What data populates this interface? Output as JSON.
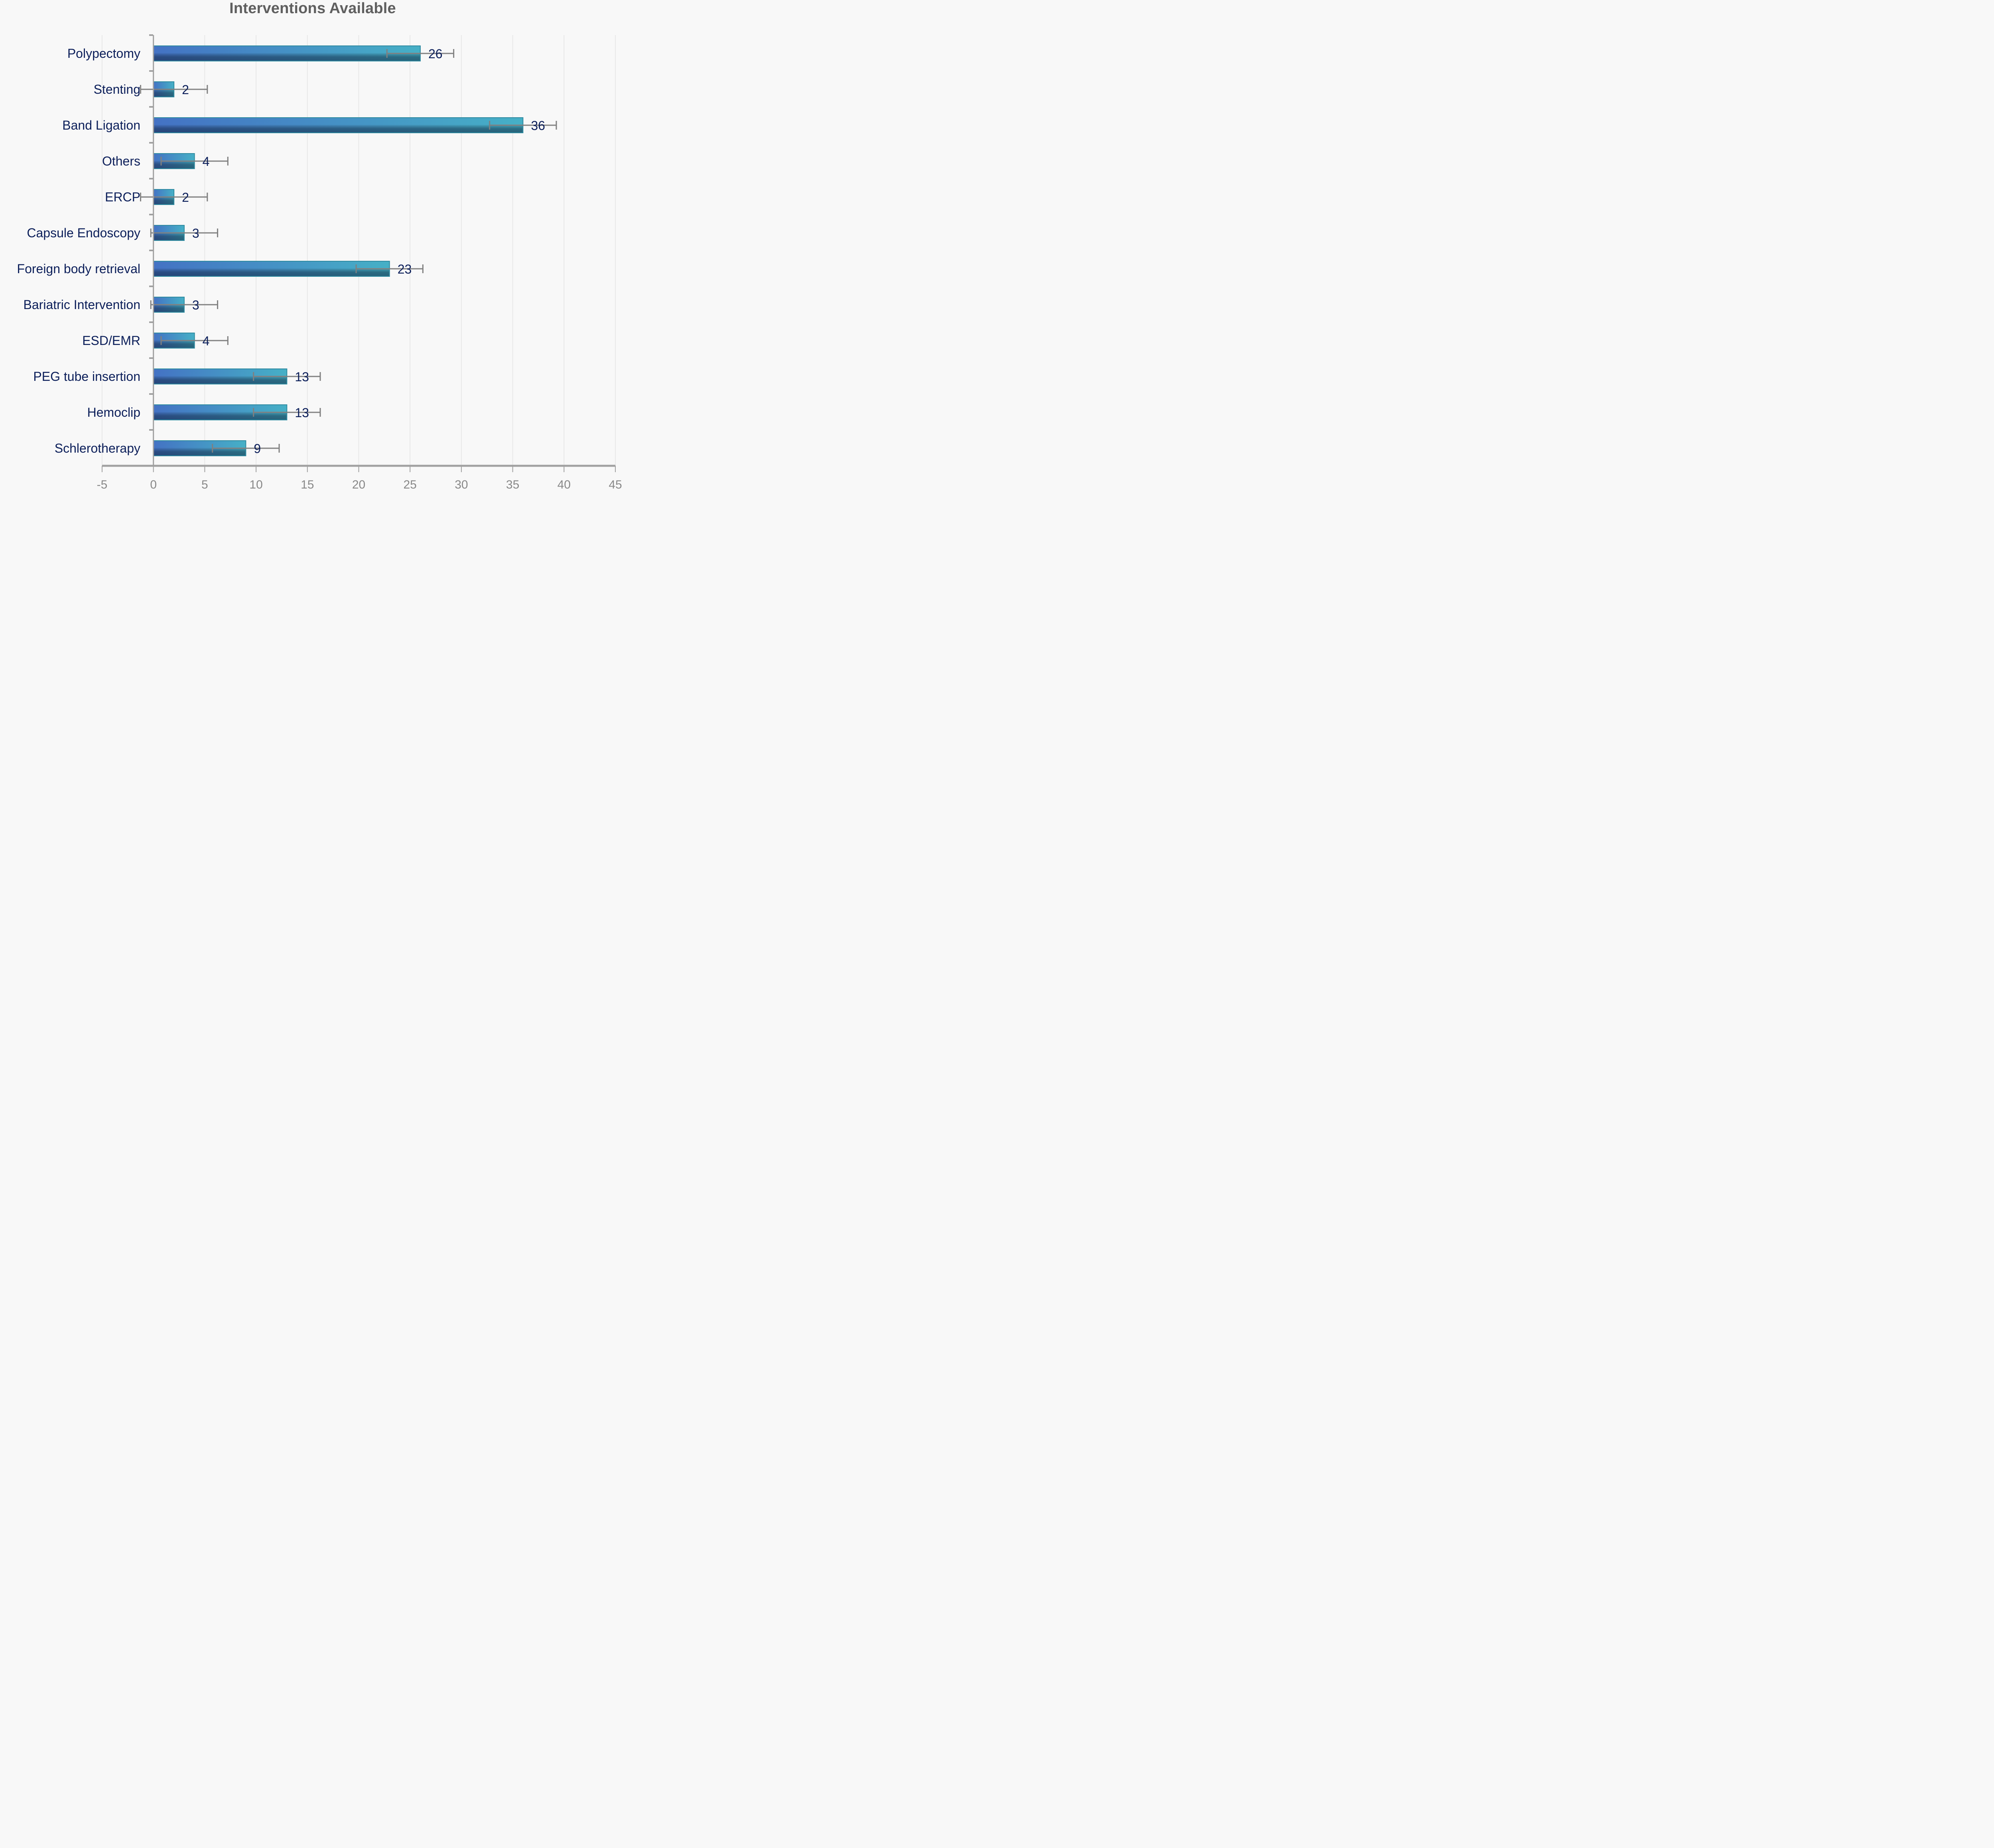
{
  "chart_data": {
    "type": "bar",
    "orientation": "horizontal",
    "title": "Interventions Available",
    "xlabel": "",
    "ylabel": "",
    "xlim": [
      -5,
      45
    ],
    "x_ticks": [
      -5,
      0,
      5,
      10,
      15,
      20,
      25,
      30,
      35,
      40,
      45
    ],
    "grid": "vertical",
    "legend": "none",
    "error_bars": "symmetric, approx ±3.25",
    "categories": [
      "Polypectomy",
      "Stenting",
      "Band Ligation",
      "Others",
      "ERCP",
      "Capsule Endoscopy",
      "Foreign body retrieval",
      "Bariatric Intervention",
      "ESD/EMR",
      "PEG tube insertion",
      "Hemoclip",
      "Schlerotherapy"
    ],
    "values": [
      26,
      2,
      36,
      4,
      2,
      3,
      23,
      3,
      4,
      13,
      13,
      9
    ],
    "error": [
      3.25,
      3.25,
      3.25,
      3.25,
      3.25,
      3.25,
      3.25,
      3.25,
      3.25,
      3.25,
      3.25,
      3.25
    ],
    "colors": {
      "bar_left": "#4472c4",
      "bar_right": "#46b0c6",
      "bar_shadow_left": "#223a66",
      "bar_shadow_right": "#275c6c",
      "bar_border": "#2e8aa0",
      "error_bar": "#808080",
      "axis": "#a0a0a0",
      "grid": "#e8e8e8",
      "label_text": "#0c1f5a",
      "tick_text": "#888888",
      "title_text": "#5f5f5f",
      "background": "#f8f8f8"
    }
  }
}
